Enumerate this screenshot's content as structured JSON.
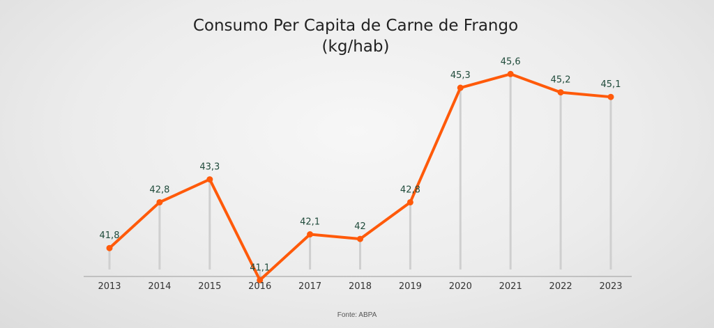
{
  "chart_data": {
    "type": "line",
    "title": "Consumo Per Capita de Carne de Frango",
    "subtitle": "(kg/hab)",
    "source": "Fonte: ABPA",
    "categories": [
      "2013",
      "2014",
      "2015",
      "2016",
      "2017",
      "2018",
      "2019",
      "2020",
      "2021",
      "2022",
      "2023"
    ],
    "values": [
      41.8,
      42.8,
      43.3,
      41.1,
      42.1,
      42.0,
      42.8,
      45.3,
      45.6,
      45.2,
      45.1
    ],
    "value_labels": [
      "41,8",
      "42,8",
      "43,3",
      "41,1",
      "42,1",
      "42",
      "42,8",
      "45,3",
      "45,6",
      "45,2",
      "45,1"
    ],
    "ylim": [
      40.8,
      46.0
    ],
    "grid": false,
    "colors": {
      "line": "#ff5a0a",
      "drop_lines": "#cfcfcf",
      "axis": "#9a9a9a",
      "value_labels": "#1f4a3a"
    }
  }
}
